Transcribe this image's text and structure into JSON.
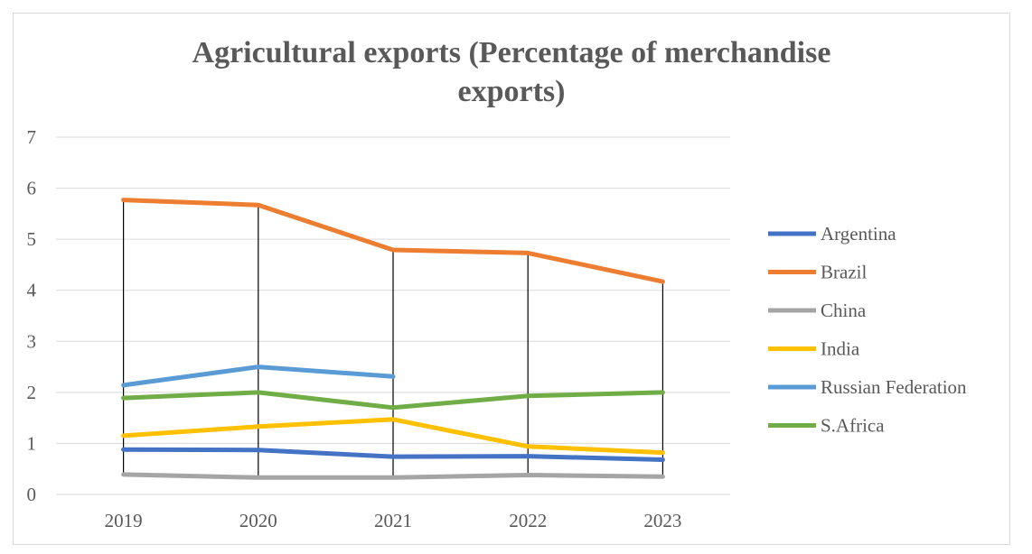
{
  "chart_data": {
    "type": "line",
    "title_lines": [
      "Agricultural exports (Percentage of merchandise",
      "exports)"
    ],
    "categories": [
      "2019",
      "2020",
      "2021",
      "2022",
      "2023"
    ],
    "y_ticks": [
      "0",
      "1",
      "2",
      "3",
      "4",
      "5",
      "6",
      "7"
    ],
    "ylim": [
      0,
      7
    ],
    "grid": true,
    "high_low_lines": true,
    "legend_position": "right",
    "series": [
      {
        "name": "Argentina",
        "color": "#4472C4",
        "values": [
          0.88,
          0.87,
          0.74,
          0.75,
          0.68
        ]
      },
      {
        "name": "Brazil",
        "color": "#ED7D31",
        "values": [
          5.77,
          5.67,
          4.79,
          4.73,
          4.17
        ]
      },
      {
        "name": "China",
        "color": "#A5A5A5",
        "values": [
          0.39,
          0.33,
          0.33,
          0.38,
          0.35
        ]
      },
      {
        "name": "India",
        "color": "#FFC000",
        "values": [
          1.15,
          1.33,
          1.47,
          0.94,
          0.82
        ]
      },
      {
        "name": "Russian Federation",
        "color": "#5B9BD5",
        "values": [
          2.14,
          2.5,
          2.31,
          null,
          null
        ]
      },
      {
        "name": "S.Africa",
        "color": "#70AD47",
        "values": [
          1.89,
          2.0,
          1.7,
          1.93,
          2.0
        ]
      }
    ]
  }
}
